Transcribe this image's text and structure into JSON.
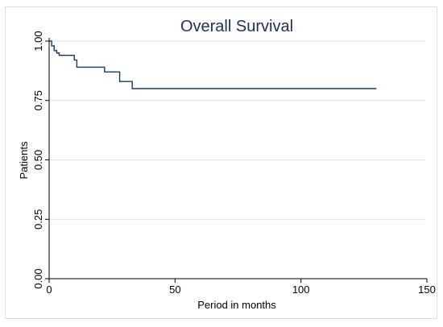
{
  "chart_data": {
    "type": "line",
    "title": "Overall Survival",
    "xlabel": "Period in months",
    "ylabel": "Patients",
    "xlim": [
      0,
      150
    ],
    "ylim": [
      0,
      1
    ],
    "x_ticks": [
      0,
      50,
      100,
      150
    ],
    "y_ticks": [
      0.0,
      0.25,
      0.5,
      0.75,
      1.0
    ],
    "x_tick_labels": [
      "0",
      "50",
      "100",
      "150"
    ],
    "y_tick_labels": [
      "0.00",
      "0.25",
      "0.50",
      "0.75",
      "1.00"
    ],
    "grid": "horizontal",
    "legend": "none",
    "step": true,
    "series": [
      {
        "x": [
          0,
          1,
          2,
          3,
          4,
          6,
          10,
          11,
          22,
          28,
          33,
          130
        ],
        "y": [
          1.0,
          0.98,
          0.96,
          0.95,
          0.94,
          0.94,
          0.92,
          0.89,
          0.87,
          0.83,
          0.8,
          0.8
        ]
      }
    ],
    "colors": {
      "line": "#1b3a5a",
      "title": "#1f2f4f",
      "axis": "#000000",
      "grid": "#e2e2e2",
      "frame": "#dcdcdc",
      "text": "#000000"
    }
  }
}
